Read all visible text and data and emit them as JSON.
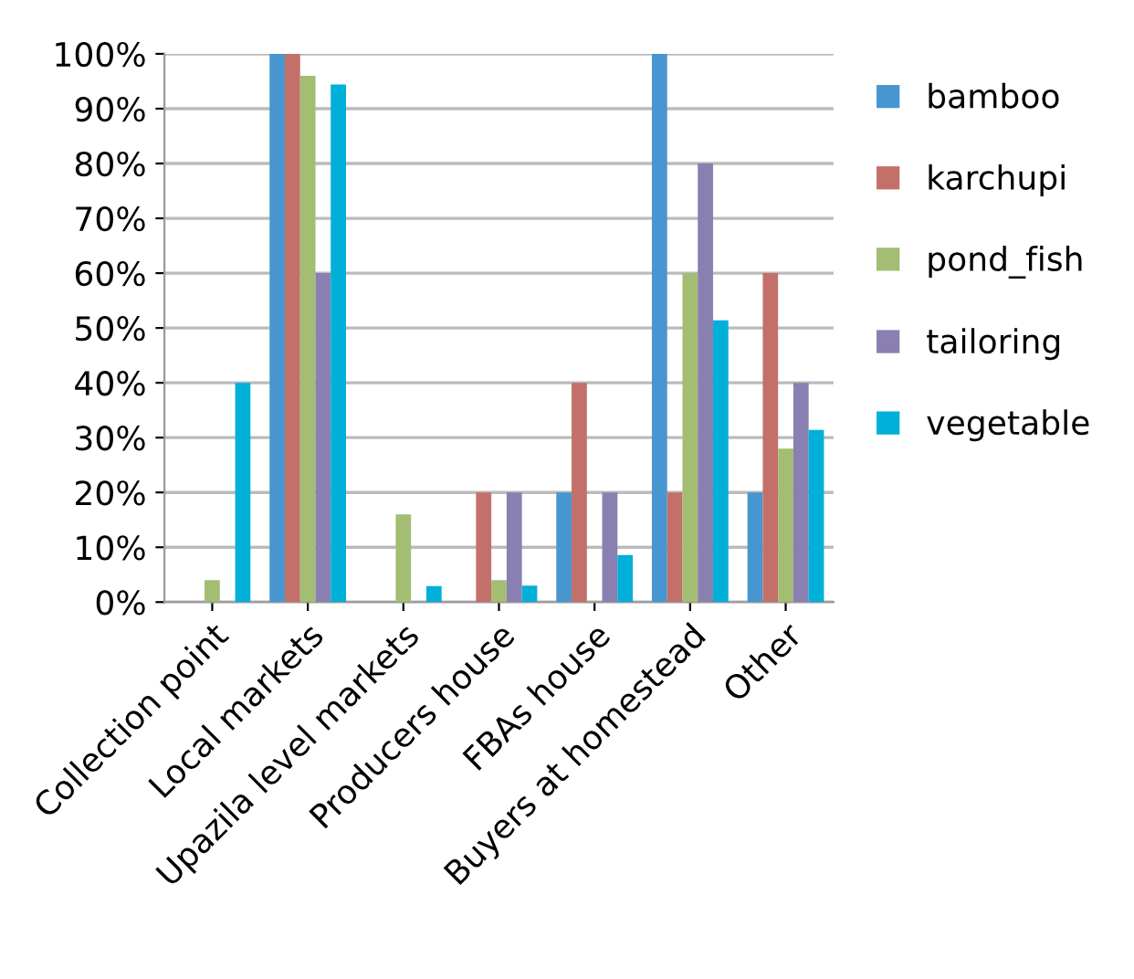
{
  "chart_data": {
    "type": "bar",
    "categories": [
      "Collection point",
      "Local markets",
      "Upazila level markets",
      "Producers house",
      "FBAs house",
      "Buyers at homestead",
      "Other"
    ],
    "series": [
      {
        "name": "bamboo",
        "color": "#4796d0",
        "values": [
          0,
          100,
          0,
          0,
          20,
          100,
          20
        ]
      },
      {
        "name": "karchupi",
        "color": "#c4706a",
        "values": [
          0,
          100,
          0,
          20,
          40,
          20,
          60
        ]
      },
      {
        "name": "pond_fish",
        "color": "#a3bd72",
        "values": [
          4,
          96,
          16,
          4,
          0,
          60,
          28
        ]
      },
      {
        "name": "tailoring",
        "color": "#8a7fb1",
        "values": [
          0,
          60,
          0,
          20,
          20,
          80,
          40
        ]
      },
      {
        "name": "vegetable",
        "color": "#00b0d8",
        "values": [
          40,
          94.4,
          2.9,
          3,
          8.6,
          51.4,
          31.4
        ]
      }
    ],
    "ylim": [
      0,
      100
    ],
    "yticks": [
      {
        "value": 0,
        "label": "0%"
      },
      {
        "value": 10,
        "label": "10%"
      },
      {
        "value": 20,
        "label": "20%"
      },
      {
        "value": 30,
        "label": "30%"
      },
      {
        "value": 40,
        "label": "40%"
      },
      {
        "value": 50,
        "label": "50%"
      },
      {
        "value": 60,
        "label": "60%"
      },
      {
        "value": 70,
        "label": "70%"
      },
      {
        "value": 80,
        "label": "80%"
      },
      {
        "value": 90,
        "label": "90%"
      },
      {
        "value": 100,
        "label": "100%"
      }
    ],
    "grid": "y",
    "legend": "right"
  }
}
